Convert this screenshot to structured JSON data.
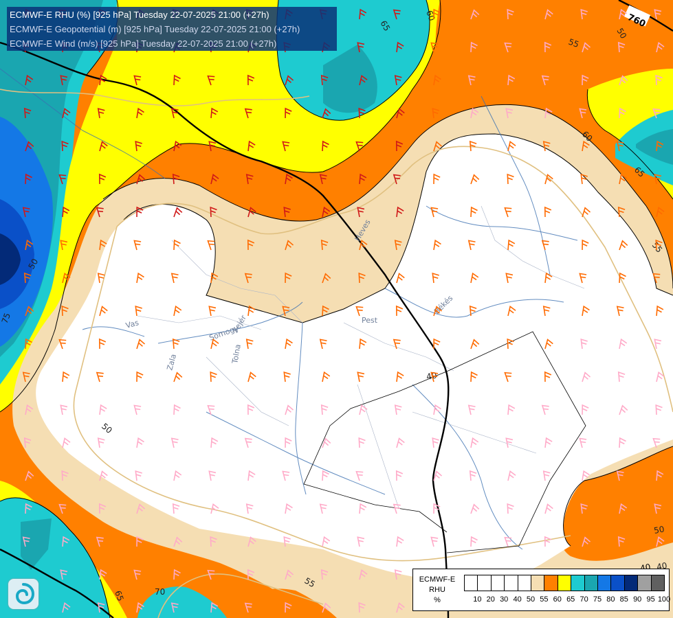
{
  "header": {
    "line1": "ECMWF-E RHU (%) [925 hPa] Tuesday 22-07-2025 21:00 (+27h)",
    "line2": "ECMWF-E Geopotential (m) [925 hPa] Tuesday 22-07-2025 21:00 (+27h)",
    "line3": "ECMWF-E Wind (m/s) [925 hPa] Tuesday 22-07-2025 21:00 (+27h)"
  },
  "legend": {
    "title_line1": "ECMWF-E",
    "title_line2": "RHU",
    "title_line3": "%",
    "ticks": [
      "10",
      "20",
      "30",
      "40",
      "50",
      "55",
      "60",
      "65",
      "70",
      "75",
      "80",
      "85",
      "90",
      "95",
      "100"
    ],
    "colors": [
      "#ffffff",
      "#ffffff",
      "#ffffff",
      "#ffffff",
      "#ffffff",
      "#f5deb3",
      "#ff8000",
      "#ffff00",
      "#1ecbd0",
      "#1aa6b0",
      "#1478e6",
      "#0a50c8",
      "#032a78",
      "#a0a0a0",
      "#606060"
    ]
  },
  "contour_labels": [
    "65",
    "60",
    "55",
    "50",
    "60",
    "65",
    "55",
    "50",
    "40",
    "50",
    "75",
    "70",
    "65",
    "55",
    "50",
    "40"
  ],
  "geopotential_labels": [
    "760",
    "40"
  ],
  "region_labels": [
    "Vas",
    "Somogy",
    "Fejér",
    "Zala",
    "Tolna",
    "Pest",
    "Békés",
    "Heves"
  ],
  "colors": {
    "rhu_white": "#ffffff",
    "rhu_tan": "#f5deb3",
    "rhu_orange": "#ff8000",
    "rhu_yellow": "#ffff00",
    "rhu_cyan": "#1ecbd0",
    "rhu_teal": "#1aa6b0",
    "rhu_blue": "#1478e6",
    "rhu_darkblue": "#0a50c8",
    "rhu_navy": "#032a78",
    "wind_red": "#d01818",
    "wind_orange": "#ff6a00",
    "wind_pink": "#ffaac8",
    "river": "#3a6fb0",
    "border": "#e0c080"
  }
}
